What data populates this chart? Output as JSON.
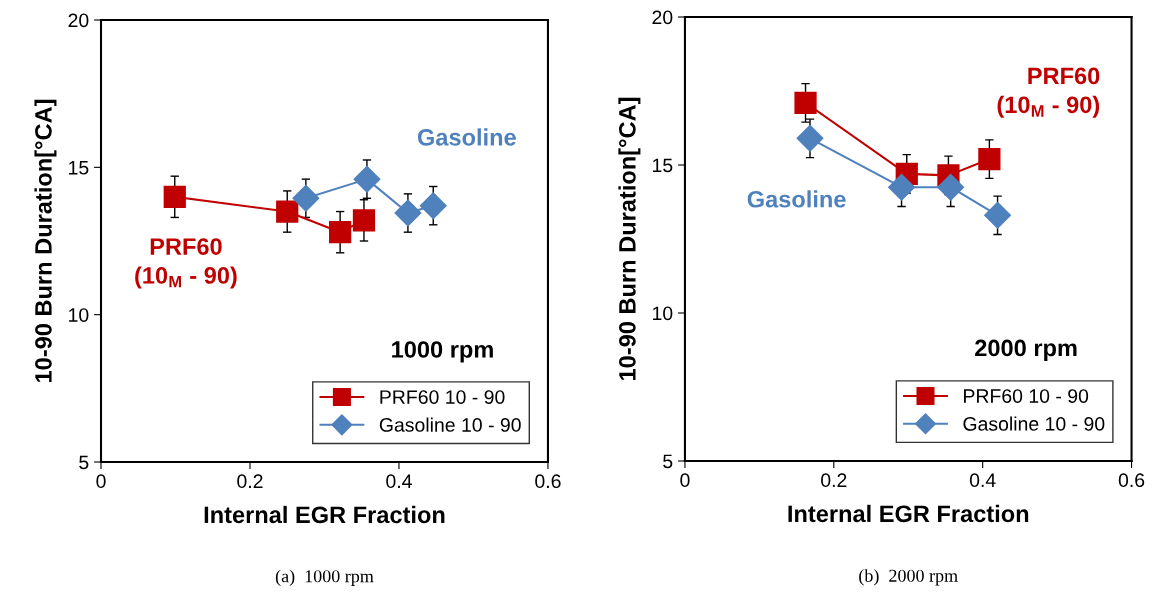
{
  "chart_data": [
    {
      "type": "line",
      "xlabel": "Internal EGR Fraction",
      "ylabel": "10-90 Burn Duration[°CA]",
      "xlim": [
        0,
        0.6
      ],
      "xticks": [
        0,
        0.2,
        0.4,
        0.6
      ],
      "ylim": [
        5,
        20
      ],
      "yticks": [
        5,
        10,
        15,
        20
      ],
      "grid": false,
      "legend": "bottom right",
      "series": [
        {
          "name": "PRF60 10 - 90",
          "color": "#c00000",
          "marker": "square",
          "x": [
            0.099,
            0.25,
            0.321,
            0.353
          ],
          "values": [
            14.0,
            13.5,
            12.8,
            13.2
          ],
          "errors": [
            0.7,
            0.7,
            0.7,
            0.7
          ]
        },
        {
          "name": "Gasoline 10 - 90",
          "color": "#4f81bd",
          "marker": "diamond",
          "x": [
            0.275,
            0.357,
            0.412,
            0.446
          ],
          "values": [
            13.95,
            14.6,
            13.45,
            13.7
          ],
          "errors": [
            0.65,
            0.65,
            0.65,
            0.65
          ]
        }
      ],
      "annotations": [
        "Gasoline",
        "PRF60\n(10$_{M}$ - 90)",
        "1000 rpm",
        "(a)  1000 rpm"
      ]
    },
    {
      "type": "line",
      "xlabel": "Internal EGR Fraction",
      "ylabel": "10-90 Burn Duration[°CA]",
      "xlim": [
        0,
        0.6
      ],
      "xticks": [
        0,
        0.2,
        0.4,
        0.6
      ],
      "ylim": [
        5,
        20
      ],
      "yticks": [
        5,
        10,
        15,
        20
      ],
      "grid": false,
      "legend": "bottom right",
      "series": [
        {
          "name": "PRF60 10 - 90",
          "color": "#c00000",
          "marker": "square",
          "x": [
            0.162,
            0.298,
            0.354,
            0.409
          ],
          "values": [
            17.1,
            14.7,
            14.65,
            15.2
          ],
          "errors": [
            0.65,
            0.65,
            0.65,
            0.65
          ]
        },
        {
          "name": "Gasoline 10 - 90",
          "color": "#4f81bd",
          "marker": "diamond",
          "x": [
            0.168,
            0.291,
            0.357,
            0.42
          ],
          "values": [
            15.9,
            14.25,
            14.25,
            13.3
          ],
          "errors": [
            0.65,
            0.65,
            0.65,
            0.65
          ]
        }
      ],
      "annotations": [
        "PRF60\n(10$_{M}$ - 90)",
        "Gasoline",
        "2000 rpm",
        "(b)  2000 rpm"
      ]
    }
  ]
}
